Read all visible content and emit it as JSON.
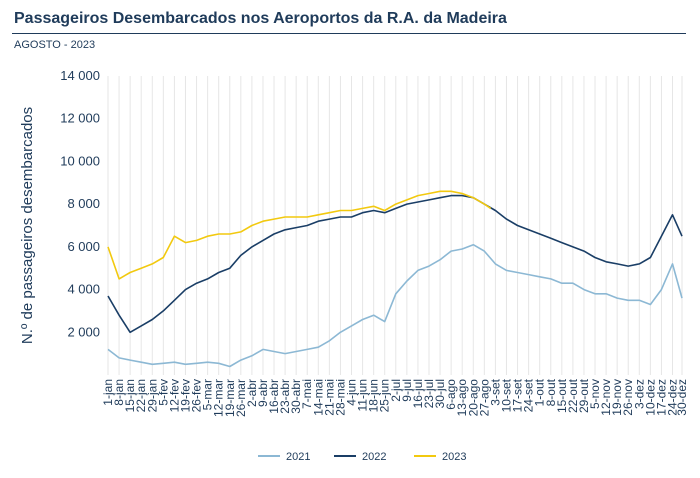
{
  "title": "Passageiros Desembarcados nos Aeroportos da R.A. da Madeira",
  "subtitle": "AGOSTO - 2023",
  "chart_data": {
    "type": "line",
    "title": "Passageiros Desembarcados nos Aeroportos da R.A. da Madeira",
    "subtitle": "AGOSTO - 2023",
    "xlabel": "",
    "ylabel": "N.º de passageiros desembarcados",
    "ylim": [
      0,
      14000
    ],
    "yticks": [
      2000,
      4000,
      6000,
      8000,
      10000,
      12000,
      14000
    ],
    "ytick_labels": [
      "2 000",
      "4 000",
      "6 000",
      "8 000",
      "10 000",
      "12 000",
      "14 000"
    ],
    "xlim": [
      1,
      364
    ],
    "xticks": [
      1,
      8,
      15,
      22,
      29,
      36,
      43,
      50,
      57,
      64,
      71,
      78,
      85,
      92,
      99,
      106,
      113,
      120,
      127,
      134,
      141,
      148,
      155,
      162,
      169,
      176,
      183,
      190,
      197,
      204,
      211,
      218,
      225,
      232,
      239,
      246,
      253,
      260,
      267,
      274,
      281,
      288,
      295,
      302,
      309,
      316,
      323,
      330,
      337,
      344,
      351,
      358,
      364
    ],
    "xtick_labels": [
      "1-jan",
      "8-jan",
      "15-jan",
      "22-jan",
      "29-jan",
      "5-fev",
      "12-fev",
      "19-fev",
      "26-fev",
      "5-mar",
      "12-mar",
      "19-mar",
      "26-mar",
      "2-abr",
      "9-abr",
      "16-abr",
      "23-abr",
      "30-abr",
      "7-mai",
      "14-mai",
      "21-mai",
      "28-mai",
      "4-jun",
      "11-jun",
      "18-jun",
      "25-jun",
      "2-jul",
      "9-jul",
      "16-jul",
      "23-jul",
      "30-jul",
      "6-ago",
      "13-ago",
      "20-ago",
      "27-ago",
      "3-set",
      "10-set",
      "17-set",
      "24-set",
      "1-out",
      "8-out",
      "15-out",
      "22-out",
      "29-out",
      "5-nov",
      "12-nov",
      "19-nov",
      "26-nov",
      "3-dez",
      "10-dez",
      "17-dez",
      "24-dez",
      "30-dez"
    ],
    "grid": "vertical",
    "legend": "bottom",
    "series": [
      {
        "name": "2021",
        "color": "#8cb8d4",
        "x": [
          1,
          8,
          15,
          22,
          29,
          36,
          43,
          50,
          57,
          64,
          71,
          78,
          85,
          92,
          99,
          106,
          113,
          120,
          127,
          134,
          141,
          148,
          155,
          162,
          169,
          176,
          183,
          190,
          197,
          204,
          211,
          218,
          225,
          232,
          239,
          246,
          253,
          260,
          267,
          274,
          281,
          288,
          295,
          302,
          309,
          316,
          323,
          330,
          337,
          344,
          351,
          358,
          364
        ],
        "values": [
          1200,
          800,
          700,
          600,
          500,
          550,
          600,
          500,
          550,
          600,
          550,
          400,
          700,
          900,
          1200,
          1100,
          1000,
          1100,
          1200,
          1300,
          1600,
          2000,
          2300,
          2600,
          2800,
          2500,
          3800,
          4400,
          4900,
          5100,
          5400,
          5800,
          5900,
          6100,
          5800,
          5200,
          4900,
          4800,
          4700,
          4600,
          4500,
          4300,
          4300,
          4000,
          3800,
          3800,
          3600,
          3500,
          3500,
          3300,
          4000,
          5200,
          3600
        ]
      },
      {
        "name": "2022",
        "color": "#1a3e66",
        "x": [
          1,
          8,
          15,
          22,
          29,
          36,
          43,
          50,
          57,
          64,
          71,
          78,
          85,
          92,
          99,
          106,
          113,
          120,
          127,
          134,
          141,
          148,
          155,
          162,
          169,
          176,
          183,
          190,
          197,
          204,
          211,
          218,
          225,
          232,
          239,
          246,
          253,
          260,
          267,
          274,
          281,
          288,
          295,
          302,
          309,
          316,
          323,
          330,
          337,
          344,
          351,
          358,
          364
        ],
        "values": [
          3700,
          2800,
          2000,
          2300,
          2600,
          3000,
          3500,
          4000,
          4300,
          4500,
          4800,
          5000,
          5600,
          6000,
          6300,
          6600,
          6800,
          6900,
          7000,
          7200,
          7300,
          7400,
          7400,
          7600,
          7700,
          7600,
          7800,
          8000,
          8100,
          8200,
          8300,
          8400,
          8400,
          8300,
          8000,
          7700,
          7300,
          7000,
          6800,
          6600,
          6400,
          6200,
          6000,
          5800,
          5500,
          5300,
          5200,
          5100,
          5200,
          5500,
          6500,
          7500,
          6500
        ]
      },
      {
        "name": "2023",
        "color": "#f2c90f",
        "x": [
          1,
          8,
          15,
          22,
          29,
          36,
          43,
          50,
          57,
          64,
          71,
          78,
          85,
          92,
          99,
          106,
          113,
          120,
          127,
          134,
          141,
          148,
          155,
          162,
          169,
          176,
          183,
          190,
          197,
          204,
          211,
          218,
          225,
          232,
          239,
          243
        ],
        "values": [
          6000,
          4500,
          4800,
          5000,
          5200,
          5500,
          6500,
          6200,
          6300,
          6500,
          6600,
          6600,
          6700,
          7000,
          7200,
          7300,
          7400,
          7400,
          7400,
          7500,
          7600,
          7700,
          7700,
          7800,
          7900,
          7700,
          8000,
          8200,
          8400,
          8500,
          8600,
          8600,
          8500,
          8300,
          8000,
          7800
        ]
      }
    ]
  }
}
